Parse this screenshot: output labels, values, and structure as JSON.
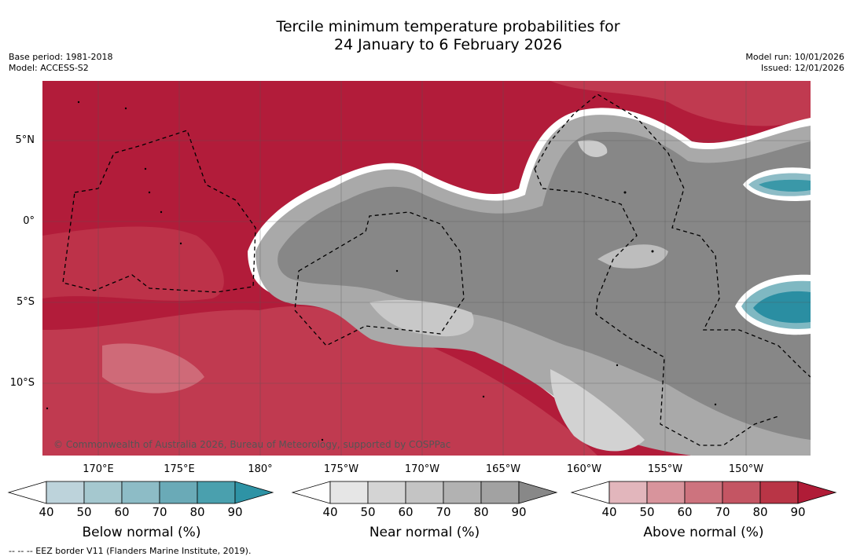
{
  "title": {
    "line1": "Tercile minimum temperature probabilities for",
    "line2": "24 January to 6 February 2026"
  },
  "meta_left": {
    "base_period": "Base period: 1981-2018",
    "model": "Model: ACCESS-S2"
  },
  "meta_right": {
    "model_run": "Model run: 10/01/2026",
    "issued": "Issued: 12/01/2026"
  },
  "map": {
    "lat_labels": [
      "5°N",
      "0°",
      "5°S",
      "10°S"
    ],
    "lon_labels": [
      "170°E",
      "175°E",
      "180°",
      "175°W",
      "170°W",
      "165°W",
      "160°W",
      "155°W",
      "150°W"
    ],
    "copyright": "© Commonwealth of Australia 2026, Bureau of Meteorology, supported by COSPPac",
    "colors": {
      "above_dark": "#b21c3a",
      "above_mid": "#c23c52",
      "near_dark": "#878787",
      "near_mid": "#a8a8a8",
      "near_light": "#cfcfcf",
      "below_mid": "#48a1b0",
      "below_dark": "#2a8ea2"
    }
  },
  "colorbars": [
    {
      "title": "Below normal (%)",
      "ticks": [
        "40",
        "50",
        "60",
        "70",
        "80",
        "90"
      ],
      "colors": [
        "#bdd3db",
        "#a5c8cf",
        "#8dbcc6",
        "#6aaab7",
        "#4aa0ae",
        "#2e93a5"
      ]
    },
    {
      "title": "Near normal (%)",
      "ticks": [
        "40",
        "50",
        "60",
        "70",
        "80",
        "90"
      ],
      "colors": [
        "#e6e6e6",
        "#d4d4d4",
        "#c4c4c4",
        "#b2b2b2",
        "#a2a2a2",
        "#888888"
      ]
    },
    {
      "title": "Above normal (%)",
      "ticks": [
        "40",
        "50",
        "60",
        "70",
        "80",
        "90"
      ],
      "colors": [
        "#e2b6bc",
        "#d8949c",
        "#cd737e",
        "#c45563",
        "#b93546",
        "#b01c37"
      ]
    }
  ],
  "footnote": "-- -- -- EEZ border V11 (Flanders Marine Institute, 2019)."
}
